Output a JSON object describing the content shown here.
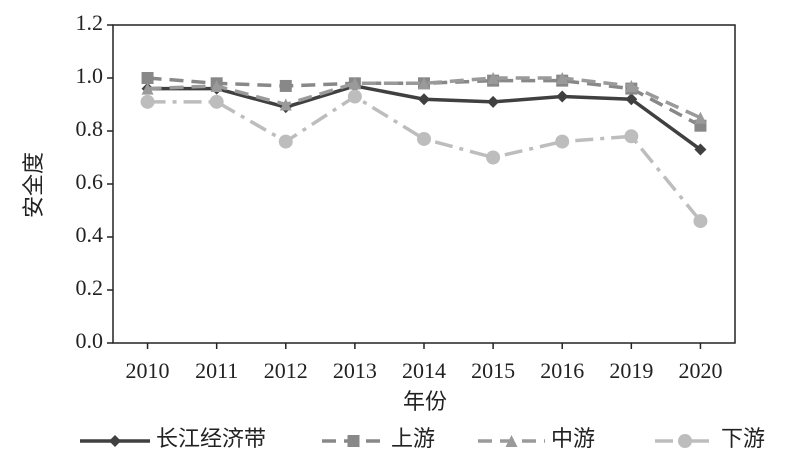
{
  "chart_data": {
    "type": "line",
    "x_label": "年份",
    "y_label": "安全度",
    "categories": [
      "2010",
      "2011",
      "2012",
      "2013",
      "2014",
      "2015",
      "2016",
      "2019",
      "2020"
    ],
    "series": [
      {
        "name": "长江经济带",
        "color": "#404040",
        "dash": "solid",
        "marker": "diamond",
        "values": [
          0.96,
          0.96,
          0.89,
          0.97,
          0.92,
          0.91,
          0.93,
          0.92,
          0.73
        ]
      },
      {
        "name": "上游",
        "color": "#888888",
        "dash": "dashed",
        "marker": "square",
        "values": [
          1.0,
          0.98,
          0.97,
          0.98,
          0.98,
          0.99,
          0.99,
          0.96,
          0.82
        ]
      },
      {
        "name": "中游",
        "color": "#9a9a9a",
        "dash": "dashed",
        "marker": "triangle",
        "values": [
          0.96,
          0.97,
          0.9,
          0.98,
          0.98,
          1.0,
          1.0,
          0.97,
          0.85
        ]
      },
      {
        "name": "下游",
        "color": "#bdbdbd",
        "dash": "dashdot",
        "marker": "circle",
        "values": [
          0.91,
          0.91,
          0.76,
          0.93,
          0.77,
          0.7,
          0.76,
          0.78,
          0.46
        ]
      }
    ],
    "ylim": [
      0,
      1.2
    ],
    "yticks": [
      {
        "value": 0,
        "label": "0.0"
      },
      0.2,
      0.4,
      0.6,
      0.8,
      {
        "value": 1,
        "label": "1.0"
      },
      1.2
    ],
    "legend": "bottom"
  }
}
